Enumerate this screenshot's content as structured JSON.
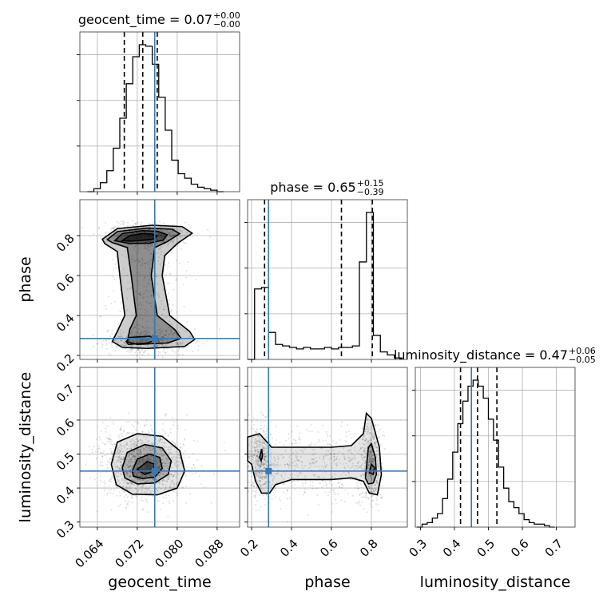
{
  "chart_data": {
    "type": "corner",
    "parameters": [
      "geocent_time",
      "phase",
      "luminosity_distance"
    ],
    "truths": {
      "geocent_time": 0.0755,
      "phase": 0.285,
      "luminosity_distance": 0.45
    },
    "axes": {
      "geocent_time": {
        "label": "geocent_time",
        "range": [
          0.0605,
          0.0925
        ],
        "ticks": [
          0.064,
          0.072,
          0.08,
          0.088
        ],
        "tick_labels": [
          "0.064",
          "0.072",
          "0.080",
          "0.088"
        ]
      },
      "phase": {
        "label": "phase",
        "range": [
          0.18,
          0.98
        ],
        "ticks": [
          0.2,
          0.4,
          0.6,
          0.8
        ],
        "tick_labels": [
          "0.2",
          "0.4",
          "0.6",
          "0.8"
        ]
      },
      "luminosity_distance": {
        "label": "luminosity_distance",
        "range": [
          0.285,
          0.755
        ],
        "ticks": [
          0.3,
          0.4,
          0.5,
          0.6,
          0.7
        ],
        "tick_labels": [
          "0.3",
          "0.4",
          "0.5",
          "0.6",
          "0.7"
        ]
      }
    },
    "titles": [
      {
        "param": "geocent_time",
        "text": "geocent_time = 0.07",
        "sup": "+0.00",
        "sub": "−0.00"
      },
      {
        "param": "phase",
        "text": "phase = 0.65",
        "sup": "+0.15",
        "sub": "−0.39"
      },
      {
        "param": "luminosity_distance",
        "text": "luminosity_distance = 0.47",
        "sup": "+0.06",
        "sub": "−0.05"
      }
    ],
    "histograms": {
      "geocent_time": {
        "edges": [
          0.062,
          0.0633,
          0.0646,
          0.0659,
          0.0672,
          0.0685,
          0.0698,
          0.0711,
          0.0724,
          0.0737,
          0.075,
          0.0763,
          0.0776,
          0.0789,
          0.0802,
          0.0815,
          0.0828,
          0.0841,
          0.0854,
          0.0867,
          0.088,
          0.0893
        ],
        "counts": [
          0,
          0.02,
          0.06,
          0.14,
          0.29,
          0.49,
          0.72,
          0.9,
          0.98,
          0.97,
          0.85,
          0.63,
          0.41,
          0.21,
          0.12,
          0.09,
          0.05,
          0.03,
          0.02,
          0.01,
          0
        ],
        "quantiles": [
          0.0694,
          0.0731,
          0.076
        ]
      },
      "phase": {
        "edges": [
          0.18,
          0.215,
          0.25,
          0.285,
          0.32,
          0.355,
          0.39,
          0.425,
          0.46,
          0.495,
          0.53,
          0.565,
          0.6,
          0.635,
          0.67,
          0.705,
          0.74,
          0.775,
          0.81,
          0.845,
          0.88,
          0.915,
          0.95
        ],
        "counts": [
          0,
          0.47,
          0.48,
          0.18,
          0.1,
          0.09,
          0.08,
          0.07,
          0.08,
          0.07,
          0.07,
          0.08,
          0.07,
          0.08,
          0.08,
          0.09,
          0.65,
          0.98,
          0.16,
          0.05,
          0.03,
          0.01
        ],
        "quantiles": [
          0.265,
          0.65,
          0.805
        ]
      },
      "luminosity_distance": {
        "edges": [
          0.29,
          0.305,
          0.32,
          0.335,
          0.35,
          0.365,
          0.38,
          0.395,
          0.41,
          0.425,
          0.44,
          0.455,
          0.47,
          0.485,
          0.5,
          0.515,
          0.53,
          0.545,
          0.56,
          0.575,
          0.59,
          0.605,
          0.62,
          0.635,
          0.65,
          0.665,
          0.68,
          0.695
        ],
        "counts": [
          0,
          0.02,
          0.03,
          0.06,
          0.09,
          0.19,
          0.32,
          0.5,
          0.69,
          0.84,
          0.94,
          0.98,
          0.94,
          0.86,
          0.72,
          0.58,
          0.4,
          0.26,
          0.17,
          0.13,
          0.09,
          0.05,
          0.03,
          0.02,
          0.02,
          0.01,
          0
        ],
        "quantiles": [
          0.418,
          0.468,
          0.525
        ]
      }
    },
    "contours_2d": {
      "phase_vs_geocent_time": [
        [
          [
            0.069,
            0.775
          ],
          [
            0.0705,
            0.8
          ],
          [
            0.073,
            0.81
          ],
          [
            0.075,
            0.808
          ],
          [
            0.076,
            0.798
          ],
          [
            0.0752,
            0.782
          ],
          [
            0.073,
            0.776
          ],
          [
            0.0705,
            0.772
          ]
        ],
        [
          [
            0.0675,
            0.775
          ],
          [
            0.069,
            0.81
          ],
          [
            0.073,
            0.825
          ],
          [
            0.076,
            0.822
          ],
          [
            0.078,
            0.805
          ],
          [
            0.0772,
            0.778
          ],
          [
            0.0745,
            0.762
          ],
          [
            0.0705,
            0.76
          ]
        ],
        [
          [
            0.066,
            0.78
          ],
          [
            0.068,
            0.82
          ],
          [
            0.074,
            0.838
          ],
          [
            0.079,
            0.832
          ],
          [
            0.0805,
            0.81
          ],
          [
            0.078,
            0.77
          ],
          [
            0.0755,
            0.74
          ],
          [
            0.0748,
            0.6
          ],
          [
            0.076,
            0.4
          ],
          [
            0.0795,
            0.33
          ],
          [
            0.0808,
            0.285
          ],
          [
            0.078,
            0.262
          ],
          [
            0.072,
            0.255
          ],
          [
            0.07,
            0.268
          ],
          [
            0.0705,
            0.33
          ],
          [
            0.0718,
            0.4
          ],
          [
            0.0708,
            0.6
          ],
          [
            0.07,
            0.74
          ],
          [
            0.067,
            0.765
          ]
        ],
        [
          [
            0.065,
            0.782
          ],
          [
            0.068,
            0.835
          ],
          [
            0.075,
            0.852
          ],
          [
            0.081,
            0.845
          ],
          [
            0.083,
            0.812
          ],
          [
            0.08,
            0.76
          ],
          [
            0.0775,
            0.7
          ],
          [
            0.077,
            0.6
          ],
          [
            0.0785,
            0.4
          ],
          [
            0.0825,
            0.32
          ],
          [
            0.0835,
            0.28
          ],
          [
            0.0815,
            0.245
          ],
          [
            0.074,
            0.235
          ],
          [
            0.069,
            0.24
          ],
          [
            0.067,
            0.27
          ],
          [
            0.068,
            0.32
          ],
          [
            0.0695,
            0.4
          ],
          [
            0.0685,
            0.6
          ],
          [
            0.068,
            0.72
          ],
          [
            0.0655,
            0.76
          ]
        ],
        [
          [
            0.0702,
            0.255
          ],
          [
            0.074,
            0.262
          ],
          [
            0.076,
            0.28
          ],
          [
            0.0745,
            0.296
          ],
          [
            0.0705,
            0.29
          ],
          [
            0.0698,
            0.27
          ]
        ]
      ],
      "luminosity_distance_vs_geocent_time": [
        [
          [
            0.072,
            0.455
          ],
          [
            0.074,
            0.478
          ],
          [
            0.0755,
            0.47
          ],
          [
            0.0752,
            0.45
          ],
          [
            0.0735,
            0.44
          ]
        ],
        [
          [
            0.071,
            0.45
          ],
          [
            0.072,
            0.485
          ],
          [
            0.0745,
            0.5
          ],
          [
            0.0765,
            0.49
          ],
          [
            0.077,
            0.458
          ],
          [
            0.0755,
            0.432
          ],
          [
            0.073,
            0.428
          ],
          [
            0.0712,
            0.435
          ]
        ],
        [
          [
            0.069,
            0.46
          ],
          [
            0.07,
            0.505
          ],
          [
            0.0735,
            0.528
          ],
          [
            0.077,
            0.518
          ],
          [
            0.0788,
            0.48
          ],
          [
            0.0782,
            0.44
          ],
          [
            0.0755,
            0.415
          ],
          [
            0.072,
            0.412
          ],
          [
            0.0695,
            0.43
          ]
        ],
        [
          [
            0.0668,
            0.47
          ],
          [
            0.068,
            0.535
          ],
          [
            0.072,
            0.56
          ],
          [
            0.077,
            0.552
          ],
          [
            0.0805,
            0.51
          ],
          [
            0.0815,
            0.45
          ],
          [
            0.08,
            0.4
          ],
          [
            0.076,
            0.38
          ],
          [
            0.071,
            0.382
          ],
          [
            0.0678,
            0.41
          ]
        ]
      ],
      "luminosity_distance_vs_phase": [
        [
          [
            0.24,
            0.49
          ],
          [
            0.25,
            0.515
          ],
          [
            0.255,
            0.495
          ],
          [
            0.248,
            0.48
          ]
        ],
        [
          [
            0.79,
            0.445
          ],
          [
            0.8,
            0.47
          ],
          [
            0.815,
            0.46
          ],
          [
            0.81,
            0.44
          ]
        ],
        [
          [
            0.77,
            0.43
          ],
          [
            0.785,
            0.52
          ],
          [
            0.8,
            0.53
          ],
          [
            0.82,
            0.49
          ],
          [
            0.825,
            0.44
          ],
          [
            0.81,
            0.415
          ],
          [
            0.785,
            0.412
          ]
        ],
        [
          [
            0.18,
            0.55
          ],
          [
            0.24,
            0.56
          ],
          [
            0.3,
            0.52
          ],
          [
            0.4,
            0.52
          ],
          [
            0.5,
            0.52
          ],
          [
            0.6,
            0.52
          ],
          [
            0.7,
            0.525
          ],
          [
            0.76,
            0.56
          ],
          [
            0.775,
            0.62
          ],
          [
            0.8,
            0.605
          ],
          [
            0.84,
            0.52
          ],
          [
            0.85,
            0.44
          ],
          [
            0.83,
            0.38
          ],
          [
            0.79,
            0.385
          ],
          [
            0.76,
            0.42
          ],
          [
            0.7,
            0.43
          ],
          [
            0.6,
            0.425
          ],
          [
            0.5,
            0.425
          ],
          [
            0.4,
            0.425
          ],
          [
            0.32,
            0.41
          ],
          [
            0.29,
            0.385
          ],
          [
            0.25,
            0.385
          ],
          [
            0.22,
            0.42
          ],
          [
            0.2,
            0.47
          ],
          [
            0.18,
            0.48
          ]
        ]
      ]
    }
  }
}
